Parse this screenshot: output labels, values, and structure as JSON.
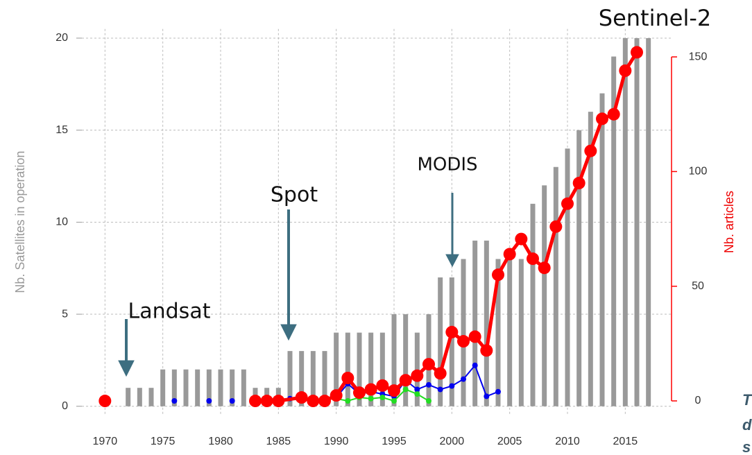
{
  "chart_data": {
    "type": "bar",
    "y_label": "Nb. Satellites in operation",
    "y2_label": "Nb. articles",
    "xlim": [
      1968,
      2019
    ],
    "xticks": [
      1970,
      1975,
      1980,
      1985,
      1990,
      1995,
      2000,
      2005,
      2010,
      2015
    ],
    "ylim": [
      -0.5,
      20.5
    ],
    "yticks": [
      0,
      5,
      10,
      15,
      20
    ],
    "y2lim": [
      -6.35,
      162.2
    ],
    "y2ticks": [
      0,
      50,
      100,
      150
    ],
    "grid": true,
    "bars": {
      "color": "#999999",
      "x": [
        1972,
        1973,
        1974,
        1975,
        1976,
        1977,
        1978,
        1979,
        1980,
        1981,
        1982,
        1983,
        1984,
        1985,
        1986,
        1987,
        1988,
        1989,
        1990,
        1991,
        1992,
        1993,
        1994,
        1995,
        1996,
        1997,
        1998,
        1999,
        2000,
        2001,
        2002,
        2003,
        2004,
        2005,
        2006,
        2007,
        2008,
        2009,
        2010,
        2011,
        2012,
        2013,
        2014,
        2015,
        2016,
        2017
      ],
      "values": [
        1,
        1,
        1,
        2,
        2,
        2,
        2,
        2,
        2,
        2,
        2,
        1,
        1,
        1,
        3,
        3,
        3,
        3,
        4,
        4,
        4,
        4,
        4,
        5,
        5,
        4,
        5,
        7,
        7,
        8,
        9,
        9,
        8,
        8,
        8,
        11,
        12,
        13,
        14,
        15,
        16,
        17,
        19,
        20,
        20,
        20
      ]
    },
    "series": [
      {
        "color": "#0000ee",
        "axis": "y2",
        "width": 2,
        "radius": 4,
        "x": [
          1976,
          1977,
          1979,
          1980,
          1981,
          1982,
          1984,
          1985,
          1986,
          1988,
          1989,
          1990,
          1991,
          1992,
          1993,
          1994,
          1995,
          1996,
          1997,
          1998,
          1999,
          2000,
          2001,
          2002,
          2003,
          2004
        ],
        "values": [
          0,
          null,
          0,
          null,
          0,
          null,
          1,
          0,
          1,
          0,
          1,
          1.5,
          7.5,
          3,
          4,
          3,
          2,
          9,
          5,
          7,
          5,
          6.5,
          9.5,
          15.5,
          2,
          4
        ]
      },
      {
        "color": "#22dd22",
        "axis": "y2",
        "width": 2,
        "radius": 4,
        "x": [
          1987,
          1988,
          1990,
          1991,
          1992,
          1993,
          1994,
          1995,
          1996,
          1997,
          1998
        ],
        "values": [
          0,
          null,
          1,
          0,
          1.5,
          1,
          1.5,
          0,
          5,
          3,
          0
        ]
      },
      {
        "color": "#ff0000",
        "axis": "y2",
        "width": 5,
        "radius": 9,
        "x": [
          1970,
          1971,
          1983,
          1984,
          1985,
          1987,
          1988,
          1989,
          1990,
          1991,
          1992,
          1993,
          1994,
          1995,
          1996,
          1997,
          1998,
          1999,
          2000,
          2001,
          2002,
          2003,
          2004,
          2005,
          2006,
          2007,
          2008,
          2009,
          2010,
          2011,
          2012,
          2013,
          2014,
          2015,
          2016
        ],
        "values": [
          0,
          null,
          0,
          0,
          0,
          1.5,
          0,
          0,
          2.4,
          10,
          3.6,
          5,
          6.7,
          4.5,
          9,
          11,
          16,
          12,
          30,
          26,
          28,
          22,
          55,
          64,
          70.6,
          62,
          58,
          76,
          86,
          95,
          109,
          123,
          125,
          144,
          152
        ]
      }
    ],
    "annotations": [
      "Landsat",
      "Spot",
      "MODIS",
      "Sentinel-2"
    ],
    "fragments": [
      "T",
      "d",
      "s"
    ]
  }
}
